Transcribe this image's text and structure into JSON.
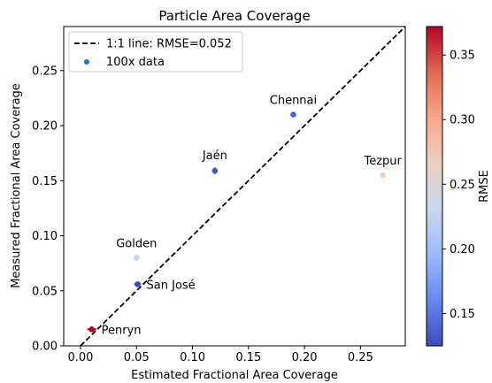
{
  "chart_data": {
    "type": "scatter",
    "title": "Particle Area Coverage",
    "xlabel": "Estimated Fractional Area Coverage",
    "ylabel": "Measured Fractional Area Coverage",
    "xlim": [
      -0.015,
      0.29
    ],
    "ylim": [
      0.0,
      0.29
    ],
    "xticks": [
      0.0,
      0.05,
      0.1,
      0.15,
      0.2,
      0.25
    ],
    "xtick_labels": [
      "0.00",
      "0.05",
      "0.10",
      "0.15",
      "0.20",
      "0.25"
    ],
    "yticks": [
      0.0,
      0.05,
      0.1,
      0.15,
      0.2,
      0.25
    ],
    "ytick_labels": [
      "0.00",
      "0.05",
      "0.10",
      "0.15",
      "0.20",
      "0.25"
    ],
    "grid": false,
    "legend": {
      "placement": "top-left",
      "entries": [
        "1:1 line: RMSE=0.052",
        "100x data"
      ]
    },
    "reference_line": {
      "label": "1:1 line: RMSE=0.052",
      "style": "dashed",
      "color": "#000000"
    },
    "points": [
      {
        "label": "Penryn",
        "x": 0.01,
        "y": 0.015,
        "err_x": 0.004,
        "rmse": 0.37,
        "color": "#b40426"
      },
      {
        "label": "San José",
        "x": 0.051,
        "y": 0.056,
        "err_x": 0.003,
        "rmse": 0.125,
        "color": "#3b4cc0"
      },
      {
        "label": "Golden",
        "x": 0.05,
        "y": 0.08,
        "err_x": 0.0,
        "rmse": 0.225,
        "color": "#c6d6f1"
      },
      {
        "label": "Jaén",
        "x": 0.12,
        "y": 0.159,
        "err_y": 0.003,
        "rmse": 0.13,
        "color": "#4055c8"
      },
      {
        "label": "Chennai",
        "x": 0.19,
        "y": 0.21,
        "rmse": 0.14,
        "color": "#4a63d3"
      },
      {
        "label": "Tezpur",
        "x": 0.27,
        "y": 0.155,
        "rmse": 0.265,
        "color": "#efcfbf"
      }
    ],
    "colorbar": {
      "label": "RMSE",
      "min": 0.125,
      "max": 0.372,
      "ticks": [
        0.15,
        0.2,
        0.25,
        0.3,
        0.35
      ],
      "tick_labels": [
        "0.15",
        "0.20",
        "0.25",
        "0.30",
        "0.35"
      ],
      "colors": [
        "#3b4cc0",
        "#6788ee",
        "#9abbff",
        "#c9d7f0",
        "#edd1c2",
        "#f7a889",
        "#e26952",
        "#b40426"
      ]
    }
  }
}
